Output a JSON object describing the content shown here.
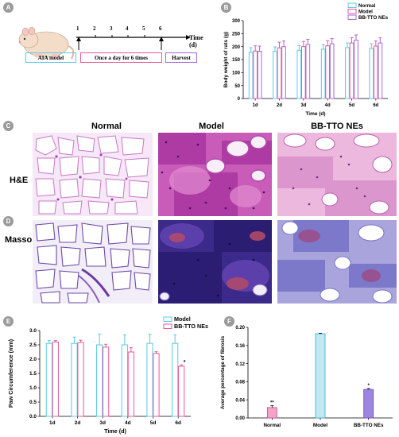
{
  "panels": {
    "a": "A",
    "b": "B",
    "c": "C",
    "d": "D",
    "e": "E",
    "f": "F"
  },
  "timeline": {
    "days": [
      "1",
      "2",
      "3",
      "4",
      "5",
      "6"
    ],
    "axis_label": "Time (d)",
    "model_box": "AIA model",
    "dosing_box": "Once a day for 6 times",
    "harvest_box": "Harvest"
  },
  "histology": {
    "columns": [
      "Normal",
      "Model",
      "BB-TTO NEs"
    ],
    "rows": [
      "H&E",
      "Masson"
    ]
  },
  "colors": {
    "normal": "#5bc8e8",
    "model": "#e8579c",
    "bbtto": "#a46ad9",
    "normal_fill": "#bfe9f5",
    "model_fill": "#f2a3c6",
    "bbtto_fill": "#9c86e0"
  },
  "chart_data": [
    {
      "id": "B",
      "type": "bar",
      "categories": [
        "1d",
        "2d",
        "3d",
        "4d",
        "5d",
        "6d"
      ],
      "series": [
        {
          "name": "Normal",
          "values": [
            178,
            181,
            186,
            190,
            196,
            193
          ],
          "errors": [
            18,
            18,
            18,
            18,
            18,
            18
          ]
        },
        {
          "name": "Model",
          "values": [
            183,
            195,
            200,
            203,
            214,
            202
          ],
          "errors": [
            20,
            22,
            20,
            20,
            20,
            20
          ]
        },
        {
          "name": "BB-TTO NEs",
          "values": [
            182,
            200,
            208,
            211,
            225,
            214
          ],
          "errors": [
            20,
            22,
            20,
            20,
            20,
            20
          ]
        }
      ],
      "xlabel": "Time (d)",
      "ylabel": "Body weight of rats (g)",
      "ylim": [
        0,
        300
      ],
      "yticks": [
        0,
        50,
        100,
        150,
        200,
        250,
        300
      ],
      "legend": "top-right"
    },
    {
      "id": "E",
      "type": "bar",
      "categories": [
        "1d",
        "2d",
        "3d",
        "4d",
        "5d",
        "6d"
      ],
      "series": [
        {
          "name": "Model",
          "values": [
            2.55,
            2.55,
            2.5,
            2.5,
            2.55,
            2.55
          ],
          "errors": [
            0.1,
            0.22,
            0.38,
            0.35,
            0.32,
            0.3
          ]
        },
        {
          "name": "BB-TTO NEs",
          "values": [
            2.6,
            2.58,
            2.42,
            2.25,
            2.2,
            1.75
          ],
          "errors": [
            0.05,
            0.08,
            0.1,
            0.15,
            0.06,
            0.05
          ]
        }
      ],
      "xlabel": "Time (d)",
      "ylabel": "Paw Circumference (mm)",
      "ylim": [
        0,
        3.0
      ],
      "yticks": [
        0.0,
        0.5,
        1.0,
        1.5,
        2.0,
        2.5,
        3.0
      ],
      "annotations": [
        {
          "category": "6d",
          "series": "BB-TTO NEs",
          "text": "*"
        }
      ],
      "legend": "top-right"
    },
    {
      "id": "F",
      "type": "bar",
      "categories": [
        "Normal",
        "Model",
        "BB-TTO NEs"
      ],
      "values": [
        0.023,
        0.186,
        0.063
      ],
      "errors": [
        0.004,
        0.001,
        0.002
      ],
      "marks": [
        "**",
        "",
        "*"
      ],
      "ylabel": "Average percentage of fibrosis",
      "ylim": [
        0,
        0.2
      ],
      "yticks": [
        0.0,
        0.04,
        0.08,
        0.12,
        0.16,
        0.2
      ],
      "ytick_labels": [
        "0.00",
        "0.04",
        "0.08",
        "0.12",
        "0.16",
        "0.20"
      ]
    }
  ]
}
